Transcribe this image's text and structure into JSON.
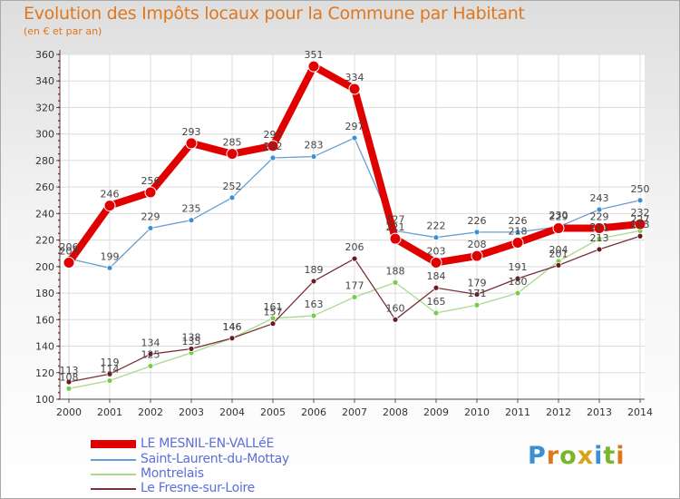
{
  "colors": {
    "title": "#e0771d",
    "axis_text": "#333333",
    "legend_text": "#5b6fd8"
  },
  "chart_data": {
    "type": "line",
    "title": "Evolution des Impôts locaux pour la Commune par Habitant",
    "subtitle": "(en € et par an)",
    "xlabel": "",
    "ylabel": "",
    "ylim": [
      100,
      360
    ],
    "yticks": [
      100,
      120,
      140,
      160,
      180,
      200,
      220,
      240,
      260,
      280,
      300,
      320,
      340,
      360
    ],
    "categories": [
      "2000",
      "2001",
      "2002",
      "2003",
      "2004",
      "2005",
      "2006",
      "2007",
      "2008",
      "2009",
      "2010",
      "2011",
      "2012",
      "2013",
      "2014"
    ],
    "series": [
      {
        "name": "LE MESNIL-EN-VALLéE",
        "color": "#e00000",
        "marker_color": "#e00000",
        "bold": true,
        "values": [
          203,
          246,
          256,
          293,
          285,
          291,
          351,
          334,
          221,
          203,
          208,
          218,
          229,
          229,
          232
        ]
      },
      {
        "name": "Saint-Laurent-du-Mottay",
        "color": "#6a9fcf",
        "marker_color": "#3d8fd4",
        "values": [
          206,
          199,
          229,
          235,
          252,
          282,
          283,
          297,
          227,
          222,
          226,
          226,
          230,
          243,
          250
        ]
      },
      {
        "name": "Montrelais",
        "color": "#a8d98c",
        "marker_color": "#78cc48",
        "values": [
          108,
          114,
          125,
          135,
          146,
          161,
          163,
          177,
          188,
          165,
          171,
          180,
          204,
          221,
          227
        ]
      },
      {
        "name": "Le Fresne-sur-Loire",
        "color": "#7a2f3a",
        "marker_color": "#6b1a24",
        "values": [
          113,
          119,
          134,
          138,
          146,
          157,
          189,
          206,
          160,
          184,
          179,
          191,
          201,
          213,
          223
        ]
      }
    ]
  },
  "logo": {
    "text": "Proxiti"
  }
}
